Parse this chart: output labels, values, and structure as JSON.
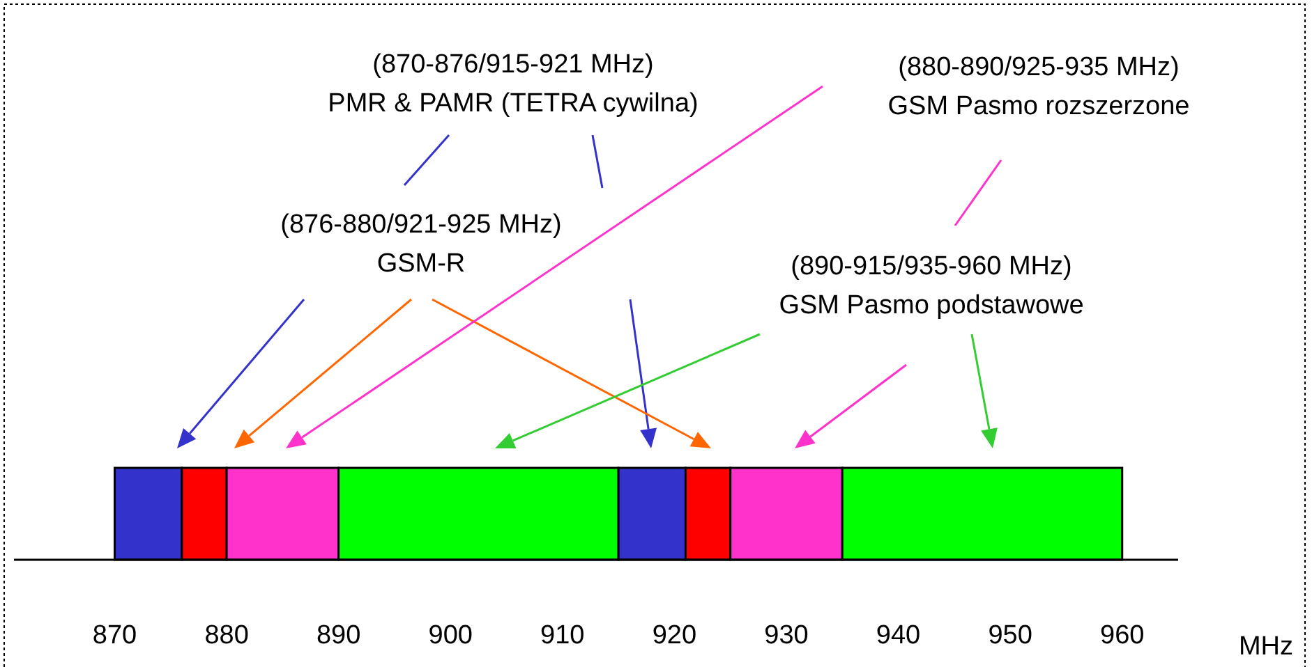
{
  "chart_data": {
    "type": "bar",
    "orientation": "horizontal",
    "categories": [
      null
    ],
    "xlabel": "MHz",
    "xlim": [
      861,
      965
    ],
    "xticks": [
      870,
      880,
      890,
      900,
      910,
      920,
      930,
      940,
      950,
      960
    ],
    "grid": false,
    "tick_labels": "x",
    "series": [
      {
        "color": "#3333cc",
        "values": [
          6
        ],
        "base": [
          870
        ]
      },
      {
        "color": "#ff0000",
        "values": [
          4
        ],
        "base": [
          876
        ]
      },
      {
        "color": "#ff33cc",
        "values": [
          10
        ],
        "base": [
          880
        ]
      },
      {
        "color": "#00ff00",
        "values": [
          25
        ],
        "base": [
          890
        ]
      },
      {
        "color": "#3333cc",
        "values": [
          6
        ],
        "base": [
          915
        ]
      },
      {
        "color": "#ff0000",
        "values": [
          4
        ],
        "base": [
          921
        ]
      },
      {
        "color": "#ff33cc",
        "values": [
          10
        ],
        "base": [
          925
        ]
      },
      {
        "color": "#00ff00",
        "values": [
          25
        ],
        "base": [
          935
        ]
      }
    ],
    "annotations": [
      "(870-876/915-921 MHz)\nPMR & PAMR (TETRA cywilna)",
      "(876-880/921-925 MHz)\nGSM-R",
      "(880-890/925-935 MHz)\nGSM Pasmo rozszerzone",
      "(890-915/935-960 MHz)\nGSM Pasmo podstawowe"
    ]
  }
}
